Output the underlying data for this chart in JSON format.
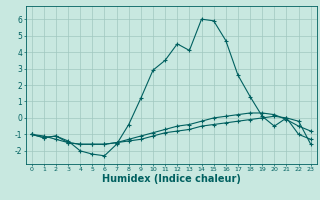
{
  "x": [
    0,
    1,
    2,
    3,
    4,
    5,
    6,
    7,
    8,
    9,
    10,
    11,
    12,
    13,
    14,
    15,
    16,
    17,
    18,
    19,
    20,
    21,
    22,
    23
  ],
  "line1": [
    -1,
    -1.2,
    -1.1,
    -1.4,
    -2,
    -2.2,
    -2.3,
    -1.6,
    -0.4,
    1.2,
    2.9,
    3.5,
    4.5,
    4.1,
    6.0,
    5.9,
    4.7,
    2.6,
    1.3,
    0.1,
    -0.5,
    0.0,
    -1.0,
    -1.3
  ],
  "line2": [
    -1,
    -1.2,
    -1.1,
    -1.5,
    -1.6,
    -1.6,
    -1.6,
    -1.5,
    -1.3,
    -1.1,
    -0.9,
    -0.7,
    -0.5,
    -0.4,
    -0.2,
    0.0,
    0.1,
    0.2,
    0.3,
    0.3,
    0.2,
    -0.1,
    -0.5,
    -0.8
  ],
  "line3": [
    -1,
    -1.1,
    -1.3,
    -1.5,
    -1.6,
    -1.6,
    -1.6,
    -1.5,
    -1.4,
    -1.3,
    -1.1,
    -0.9,
    -0.8,
    -0.7,
    -0.5,
    -0.4,
    -0.3,
    -0.2,
    -0.1,
    0.0,
    0.1,
    0.0,
    -0.2,
    -1.6
  ],
  "bg_color": "#c8e8e0",
  "line_color": "#006060",
  "grid_color": "#a0c8c0",
  "xlabel": "Humidex (Indice chaleur)",
  "xlabel_fontsize": 7,
  "ylim": [
    -2.8,
    6.8
  ],
  "xlim": [
    -0.5,
    23.5
  ],
  "xticks": [
    0,
    1,
    2,
    3,
    4,
    5,
    6,
    7,
    8,
    9,
    10,
    11,
    12,
    13,
    14,
    15,
    16,
    17,
    18,
    19,
    20,
    21,
    22,
    23
  ],
  "yticks": [
    -2,
    -1,
    0,
    1,
    2,
    3,
    4,
    5,
    6
  ]
}
